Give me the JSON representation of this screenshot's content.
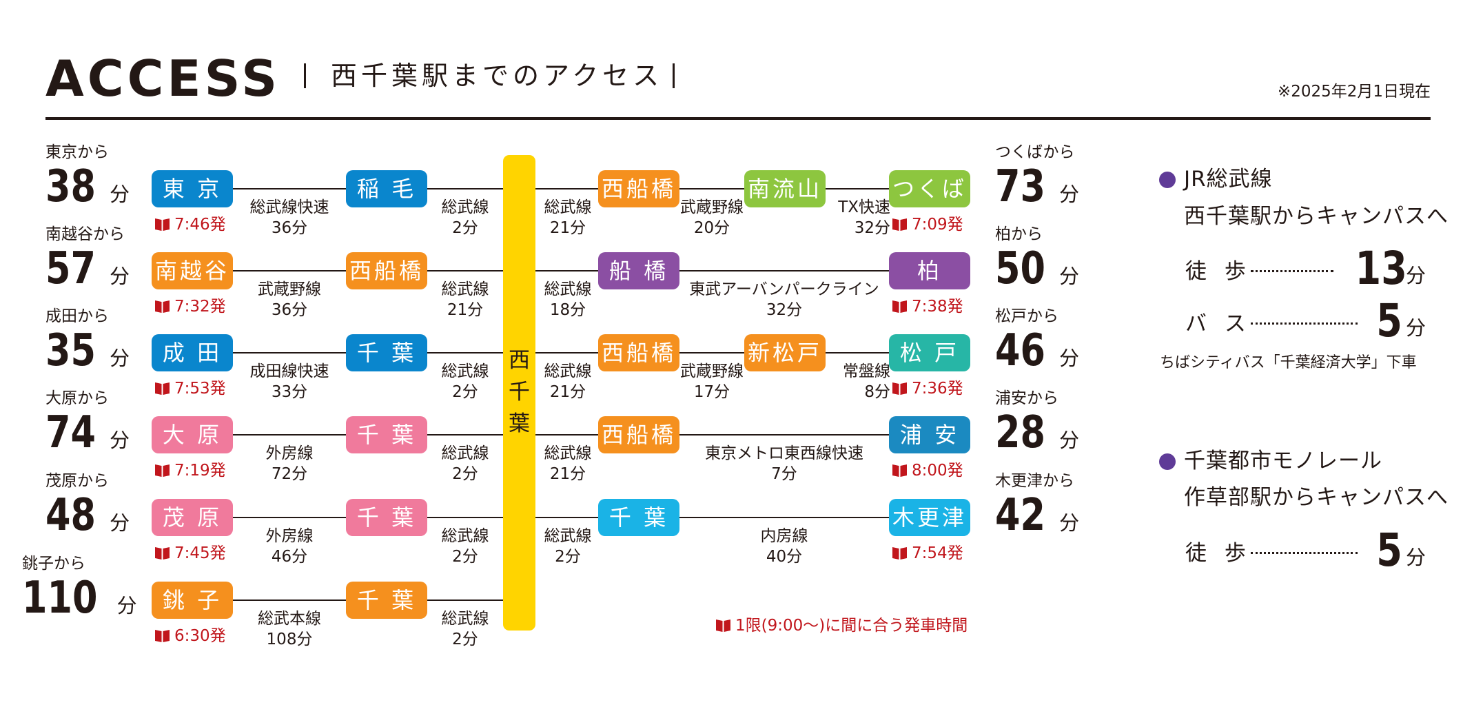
{
  "header": {
    "title": "ACCESS",
    "subtitle": "西千葉駅までのアクセス",
    "as_of": "※2025年2月1日現在"
  },
  "hub": {
    "label": "西\n千\n葉",
    "color": "#FFD400"
  },
  "colors": {
    "blue": "#0A86CD",
    "orange": "#F5901E",
    "green": "#8DC63F",
    "purple": "#8B4FA3",
    "teal": "#27B6A6",
    "pink": "#F07A9C",
    "sky": "#1AB3E6",
    "steel": "#1B8AC1",
    "accent_red": "#c1161c",
    "monorail_dot": "#5F3B97"
  },
  "left_routes": [
    {
      "from_label": "東京から",
      "minutes": "38",
      "unit": "分",
      "origin": "東 京",
      "origin_color": "#0A86CD",
      "departure": "7:46発",
      "line1": "総武線快速",
      "time1": "36分",
      "transfer": "稲 毛",
      "transfer_color": "#0A86CD",
      "line2": "総武線",
      "time2": "2分"
    },
    {
      "from_label": "南越谷から",
      "minutes": "57",
      "unit": "分",
      "origin": "南越谷",
      "origin_color": "#F5901E",
      "departure": "7:32発",
      "line1": "武蔵野線",
      "time1": "36分",
      "transfer": "西船橋",
      "transfer_color": "#F5901E",
      "line2": "総武線",
      "time2": "21分"
    },
    {
      "from_label": "成田から",
      "minutes": "35",
      "unit": "分",
      "origin": "成 田",
      "origin_color": "#0A86CD",
      "departure": "7:53発",
      "line1": "成田線快速",
      "time1": "33分",
      "transfer": "千 葉",
      "transfer_color": "#0A86CD",
      "line2": "総武線",
      "time2": "2分"
    },
    {
      "from_label": "大原から",
      "minutes": "74",
      "unit": "分",
      "origin": "大 原",
      "origin_color": "#F07A9C",
      "departure": "7:19発",
      "line1": "外房線",
      "time1": "72分",
      "transfer": "千 葉",
      "transfer_color": "#F07A9C",
      "line2": "総武線",
      "time2": "2分"
    },
    {
      "from_label": "茂原から",
      "minutes": "48",
      "unit": "分",
      "origin": "茂 原",
      "origin_color": "#F07A9C",
      "departure": "7:45発",
      "line1": "外房線",
      "time1": "46分",
      "transfer": "千 葉",
      "transfer_color": "#F07A9C",
      "line2": "総武線",
      "time2": "2分"
    },
    {
      "from_label": "銚子から",
      "minutes": "110",
      "unit": "分",
      "origin": "銚 子",
      "origin_color": "#F5901E",
      "departure": "6:30発",
      "line1": "総武本線",
      "time1": "108分",
      "transfer": "千 葉",
      "transfer_color": "#F5901E",
      "line2": "総武線",
      "time2": "2分"
    }
  ],
  "right_routes": [
    {
      "from_label": "つくばから",
      "minutes": "73",
      "unit": "分",
      "seg_a_line": "総武線",
      "seg_a_time": "21分",
      "st1": "西船橋",
      "st1_color": "#F5901E",
      "seg_b_line": "武蔵野線",
      "seg_b_time": "20分",
      "st2": "南流山",
      "st2_color": "#8DC63F",
      "seg_c_line": "TX快速",
      "seg_c_time": "32分",
      "origin": "つくば",
      "origin_color": "#8DC63F",
      "departure": "7:09発"
    },
    {
      "from_label": "柏から",
      "minutes": "50",
      "unit": "分",
      "seg_a_line": "総武線",
      "seg_a_time": "18分",
      "st1": "船 橋",
      "st1_color": "#8B4FA3",
      "seg_b_line": "東武アーバンパークライン",
      "seg_b_time": "32分",
      "origin": "柏",
      "origin_color": "#8B4FA3",
      "departure": "7:38発"
    },
    {
      "from_label": "松戸から",
      "minutes": "46",
      "unit": "分",
      "seg_a_line": "総武線",
      "seg_a_time": "21分",
      "st1": "西船橋",
      "st1_color": "#F5901E",
      "seg_b_line": "武蔵野線",
      "seg_b_time": "17分",
      "st2": "新松戸",
      "st2_color": "#F5901E",
      "seg_c_line": "常盤線",
      "seg_c_time": "8分",
      "origin": "松 戸",
      "origin_color": "#27B6A6",
      "departure": "7:36発"
    },
    {
      "from_label": "浦安から",
      "minutes": "28",
      "unit": "分",
      "seg_a_line": "総武線",
      "seg_a_time": "21分",
      "st1": "西船橋",
      "st1_color": "#F5901E",
      "seg_b_line": "東京メトロ東西線快速",
      "seg_b_time": "7分",
      "origin": "浦 安",
      "origin_color": "#1B8AC1",
      "departure": "8:00発"
    },
    {
      "from_label": "木更津から",
      "minutes": "42",
      "unit": "分",
      "seg_a_line": "総武線",
      "seg_a_time": "2分",
      "st1": "千 葉",
      "st1_color": "#1AB3E6",
      "seg_b_line": "内房線",
      "seg_b_time": "40分",
      "origin": "木更津",
      "origin_color": "#1AB3E6",
      "departure": "7:54発"
    }
  ],
  "legend_note": "1限(9:00〜)に間に合う発車時間",
  "campus": {
    "jr": {
      "line": "JR総武線",
      "heading": "西千葉駅からキャンパスへ",
      "walk_label": "徒 歩",
      "walk_minutes": "13",
      "walk_unit": "分",
      "bus_label": "バ ス",
      "bus_minutes": "5",
      "bus_unit": "分",
      "bus_note": "ちばシティバス「千葉経済大学」下車"
    },
    "monorail": {
      "line": "千葉都市モノレール",
      "heading": "作草部駅からキャンパスへ",
      "walk_label": "徒 歩",
      "walk_minutes": "5",
      "walk_unit": "分"
    }
  }
}
